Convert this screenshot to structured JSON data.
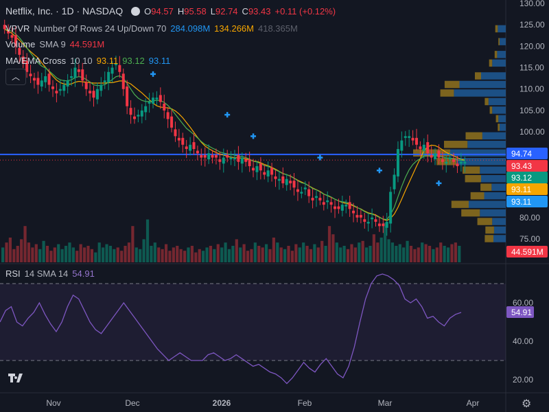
{
  "header": {
    "symbol": "Netflix, Inc. · 1D · NASDAQ",
    "o_label": "O",
    "o": "94.57",
    "h_label": "H",
    "h": "95.58",
    "l_label": "L",
    "l": "92.74",
    "c_label": "C",
    "c": "93.43",
    "change": "+0.11 (+0.12%)"
  },
  "indicators": {
    "vpvr_name": "VPVR",
    "vpvr_params": "Number Of Rows 24 Up/Down 70",
    "vpvr_v1": "284.098M",
    "vpvr_v2": "134.266M",
    "vpvr_v3": "418.365M",
    "volume_name": "Volume",
    "volume_params": "SMA 9",
    "volume_value": "44.591M",
    "ma_name": "MA/EMA Cross",
    "ma_params": "10 10",
    "ma_v1": "93.11",
    "ma_v2": "93.12",
    "ma_v3": "93.11",
    "rsi_name": "RSI",
    "rsi_params": "14 SMA 14",
    "rsi_value": "54.91"
  },
  "collapse_icon": "chevron-up-icon",
  "chart_data": [
    {
      "type": "candlestick",
      "price_axis": {
        "ticks": [
          "130.00",
          "125.00",
          "120.00",
          "115.00",
          "110.00",
          "105.00",
          "100.00",
          "80.00",
          "75.00"
        ],
        "range": [
          72,
          130
        ]
      },
      "time_axis": {
        "labels": [
          "Nov",
          "Dec",
          "2026",
          "Feb",
          "Mar",
          "Apr"
        ]
      },
      "price_labels": [
        {
          "value": "94.74",
          "color": "#2962ff"
        },
        {
          "value": "93.43",
          "color": "#f23645"
        },
        {
          "value": "93.12",
          "color": "#089981"
        },
        {
          "value": "93.11",
          "color": "#f7a600"
        },
        {
          "value": "93.11",
          "color": "#2196f3"
        },
        {
          "value": "44.591M",
          "color": "#f23645"
        }
      ],
      "horizontal_line": 94.74,
      "close_series": [
        124,
        123,
        122,
        120,
        118,
        116,
        114,
        113,
        112,
        111,
        112,
        113,
        111,
        110,
        109,
        110,
        111,
        112,
        113,
        115,
        114,
        112,
        110,
        109,
        108,
        110,
        111,
        112,
        114,
        115,
        116,
        114,
        110,
        106,
        104,
        103,
        104,
        105,
        106,
        107,
        108,
        108,
        107,
        105,
        103,
        101,
        99,
        98,
        97,
        96,
        97,
        96,
        95,
        94,
        94,
        95,
        94,
        94,
        93,
        94,
        94,
        94,
        94,
        93,
        94,
        93,
        92,
        91,
        92,
        91,
        90,
        91,
        90,
        89,
        89,
        88,
        89,
        88,
        87,
        86,
        86,
        87,
        85,
        84,
        85,
        84,
        83,
        84,
        83,
        82,
        82,
        83,
        83,
        82,
        81,
        80,
        80,
        79,
        79,
        80,
        79,
        78,
        78,
        79,
        86,
        90,
        96,
        98,
        99,
        99,
        98,
        97,
        96,
        97,
        95,
        94,
        95,
        94,
        93,
        93,
        94,
        93,
        92,
        93,
        93
      ],
      "vpvr_rows": [
        {
          "price": 124,
          "up": 4,
          "down": 13
        },
        {
          "price": 121,
          "up": 2,
          "down": 10
        },
        {
          "price": 118,
          "up": 4,
          "down": 14
        },
        {
          "price": 116,
          "up": 5,
          "down": 22
        },
        {
          "price": 113,
          "up": 10,
          "down": 40
        },
        {
          "price": 111,
          "up": 24,
          "down": 75
        },
        {
          "price": 109,
          "up": 22,
          "down": 84
        },
        {
          "price": 107,
          "up": 6,
          "down": 28
        },
        {
          "price": 105,
          "up": 4,
          "down": 22
        },
        {
          "price": 103,
          "up": 4,
          "down": 12
        },
        {
          "price": 101,
          "up": 3,
          "down": 10
        },
        {
          "price": 99,
          "up": 27,
          "down": 38
        },
        {
          "price": 97,
          "up": 38,
          "down": 62
        },
        {
          "price": 95,
          "up": 60,
          "down": 90
        },
        {
          "price": 93,
          "up": 32,
          "down": 80
        },
        {
          "price": 91,
          "up": 28,
          "down": 42
        },
        {
          "price": 89,
          "up": 26,
          "down": 40
        },
        {
          "price": 87,
          "up": 18,
          "down": 23
        },
        {
          "price": 85,
          "up": 22,
          "down": 35
        },
        {
          "price": 83,
          "up": 28,
          "down": 60
        },
        {
          "price": 81,
          "up": 30,
          "down": 42
        },
        {
          "price": 79,
          "up": 24,
          "down": 22
        },
        {
          "price": 77,
          "up": 14,
          "down": 19
        },
        {
          "price": 75,
          "up": 14,
          "down": 20
        }
      ]
    },
    {
      "type": "line",
      "name": "RSI",
      "ticks": [
        "60.00",
        "40.00",
        "20.00"
      ],
      "range": [
        15,
        78
      ],
      "bands": [
        70,
        30
      ],
      "values": [
        50,
        56,
        58,
        50,
        48,
        52,
        55,
        60,
        54,
        49,
        45,
        50,
        58,
        64,
        62,
        56,
        50,
        46,
        44,
        48,
        52,
        56,
        60,
        56,
        52,
        48,
        44,
        40,
        36,
        33,
        30,
        32,
        34,
        32,
        30,
        30,
        30,
        33,
        34,
        32,
        30,
        31,
        33,
        31,
        29,
        27,
        28,
        26,
        24,
        23,
        21,
        18,
        21,
        25,
        29,
        26,
        24,
        28,
        31,
        27,
        23,
        21,
        27,
        37,
        50,
        62,
        70,
        74,
        75,
        74,
        72,
        69,
        62,
        60,
        62,
        58,
        52,
        53,
        50,
        48,
        52,
        54,
        55
      ]
    },
    {
      "type": "bar",
      "name": "Volume",
      "values": [
        9,
        12,
        15,
        8,
        10,
        14,
        22,
        12,
        9,
        11,
        8,
        13,
        10,
        7,
        9,
        11,
        8,
        10,
        12,
        9,
        7,
        11,
        9,
        10,
        8,
        6,
        12,
        9,
        11,
        10,
        8,
        9,
        7,
        10,
        12,
        22,
        9,
        8,
        14,
        26,
        10,
        12,
        9,
        8,
        11,
        7,
        9,
        10,
        8,
        7,
        9,
        10,
        6,
        8,
        7,
        9,
        10,
        8,
        11,
        9,
        12,
        8,
        10,
        14,
        9,
        11,
        7,
        8,
        12,
        10,
        9,
        11,
        8,
        15,
        12,
        9,
        8,
        10,
        7,
        11,
        9,
        12,
        10,
        8,
        11,
        9,
        13,
        10,
        22,
        17,
        12,
        9,
        10,
        8,
        11,
        9,
        12,
        13,
        9,
        10,
        17,
        12,
        15,
        24,
        14,
        12,
        10,
        11,
        9,
        13,
        10,
        8,
        9,
        12,
        11,
        10,
        8,
        9,
        12,
        10,
        9,
        11,
        12,
        10
      ]
    }
  ]
}
